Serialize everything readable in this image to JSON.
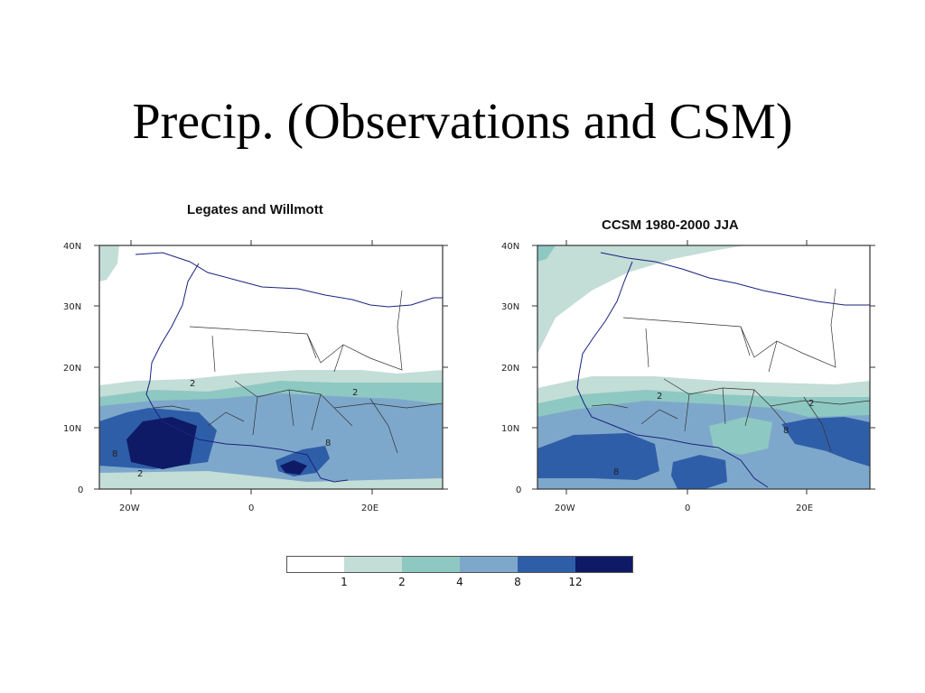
{
  "slide_title": "Precip. (Observations and CSM)",
  "maps": [
    {
      "title": "Legates and Willmott",
      "y_ticks": [
        "40N",
        "30N",
        "20N",
        "10N",
        "0"
      ],
      "x_ticks": [
        "20W",
        "0",
        "20E"
      ],
      "contour_labels": [
        "2",
        "2",
        "8",
        "8",
        "2"
      ]
    },
    {
      "title": "CCSM 1980-2000 JJA",
      "y_ticks": [
        "40N",
        "30N",
        "20N",
        "10N",
        "0"
      ],
      "x_ticks": [
        "20W",
        "0",
        "20E"
      ],
      "contour_labels": [
        "2",
        "2",
        "8",
        "8"
      ]
    }
  ],
  "colorbar": {
    "colors": [
      "#ffffff",
      "#c3ddd7",
      "#8ec8c2",
      "#7ea8cb",
      "#2f5ea8",
      "#0f1a66"
    ],
    "labels": [
      "1",
      "2",
      "4",
      "8",
      "12"
    ]
  },
  "colors": {
    "land_outline": "#1a237e",
    "border": "#333333"
  }
}
